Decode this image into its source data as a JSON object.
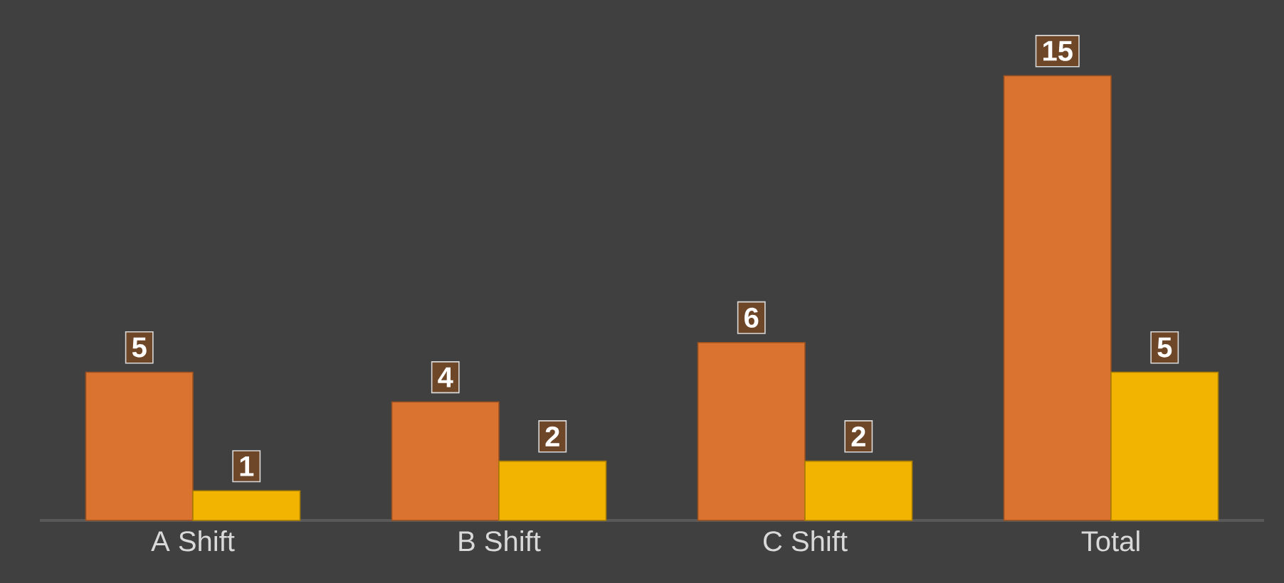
{
  "chart_data": {
    "type": "bar",
    "categories": [
      "A Shift",
      "B Shift",
      "C Shift",
      "Total"
    ],
    "series": [
      {
        "color": "#d9732f",
        "values": [
          5,
          4,
          6,
          15
        ]
      },
      {
        "color": "#f2b400",
        "values": [
          1,
          2,
          2,
          5
        ]
      }
    ],
    "data_labels": true
  }
}
